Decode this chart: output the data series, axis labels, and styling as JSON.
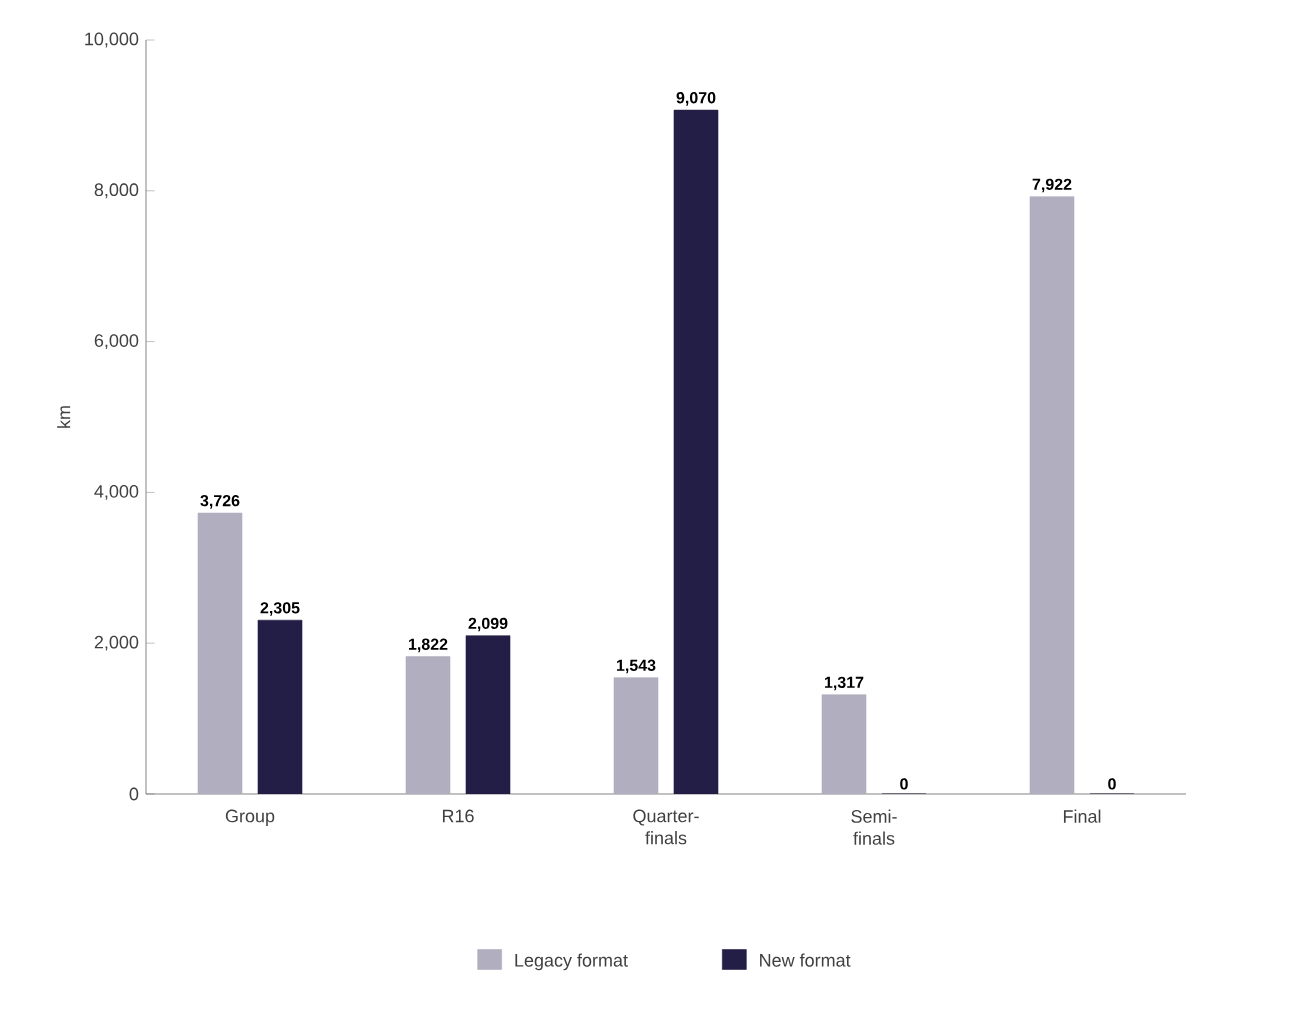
{
  "chart_data": {
    "type": "bar",
    "ylabel": "km",
    "categories": [
      "Group",
      "R16",
      "Quarter-finals",
      "Semi-finals",
      "Final"
    ],
    "series": [
      {
        "name": "Legacy format",
        "color": "#b1afbf",
        "values": [
          3726,
          1822,
          1543,
          1317,
          7922
        ],
        "value_labels": [
          "3,726",
          "1,822",
          "1,543",
          "1,317",
          "7,922"
        ]
      },
      {
        "name": "New format",
        "color": "#231e45",
        "values": [
          2305,
          2099,
          9070,
          0,
          0
        ],
        "value_labels": [
          "2,305",
          "2,099",
          "9,070",
          "0",
          "0"
        ]
      }
    ],
    "ylim": [
      0,
      10000
    ],
    "yticks": [
      0,
      {
        "value": 2000,
        "label": "2,000"
      },
      {
        "value": 4000,
        "label": "4,000"
      },
      {
        "value": 6000,
        "label": "6,000"
      },
      {
        "value": 8000,
        "label": "8,000"
      },
      {
        "value": 10000,
        "label": "10,000"
      }
    ],
    "grid": false,
    "legend": "bottom"
  }
}
